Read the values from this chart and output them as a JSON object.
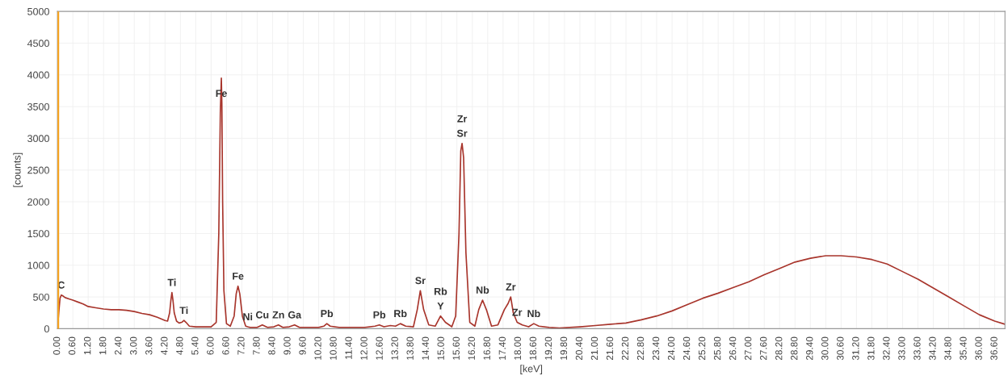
{
  "chart_data": {
    "type": "line",
    "xlabel": "[keV]",
    "ylabel": "[counts]",
    "x": [
      0.0,
      0.05,
      0.1,
      0.15,
      0.2,
      0.3,
      0.45,
      0.6,
      0.8,
      1.0,
      1.2,
      1.5,
      1.8,
      2.1,
      2.4,
      2.7,
      3.0,
      3.3,
      3.6,
      3.9,
      4.2,
      4.3,
      4.38,
      4.43,
      4.47,
      4.51,
      4.56,
      4.65,
      4.75,
      4.85,
      4.94,
      5.02,
      5.15,
      5.4,
      5.7,
      6.0,
      6.2,
      6.3,
      6.36,
      6.4,
      6.42,
      6.45,
      6.5,
      6.6,
      6.75,
      6.9,
      6.98,
      7.05,
      7.12,
      7.22,
      7.35,
      7.43,
      7.52,
      7.8,
      8.0,
      8.2,
      8.45,
      8.63,
      8.8,
      9.05,
      9.26,
      9.45,
      9.8,
      10.2,
      10.4,
      10.52,
      10.65,
      11.0,
      11.5,
      12.0,
      12.4,
      12.57,
      12.75,
      13.0,
      13.2,
      13.39,
      13.6,
      13.9,
      14.05,
      14.17,
      14.3,
      14.5,
      14.75,
      14.96,
      15.15,
      15.4,
      15.55,
      15.68,
      15.75,
      15.8,
      15.86,
      15.95,
      16.1,
      16.3,
      16.45,
      16.6,
      16.75,
      16.95,
      17.2,
      17.45,
      17.6,
      17.7,
      17.8,
      17.95,
      18.15,
      18.4,
      18.6,
      18.8,
      19.2,
      19.6,
      20.0,
      20.4,
      21.0,
      21.6,
      22.2,
      22.8,
      23.4,
      24.0,
      24.6,
      25.2,
      25.8,
      26.4,
      27.0,
      27.6,
      28.2,
      28.8,
      29.4,
      30.0,
      30.6,
      31.2,
      31.8,
      32.4,
      33.0,
      33.6,
      34.2,
      34.8,
      35.4,
      36.0,
      36.6,
      37.0
    ],
    "series": [
      {
        "color": "#a8352c",
        "values": [
          0,
          250,
          480,
          530,
          520,
          490,
          470,
          450,
          420,
          390,
          350,
          330,
          310,
          300,
          300,
          290,
          270,
          240,
          220,
          180,
          130,
          120,
          250,
          450,
          570,
          450,
          250,
          120,
          90,
          100,
          130,
          100,
          40,
          30,
          30,
          30,
          100,
          1500,
          3400,
          3950,
          3550,
          2000,
          600,
          80,
          40,
          200,
          550,
          670,
          550,
          200,
          40,
          30,
          20,
          20,
          60,
          20,
          30,
          60,
          20,
          30,
          60,
          20,
          20,
          20,
          40,
          80,
          40,
          20,
          20,
          20,
          40,
          60,
          30,
          50,
          40,
          80,
          40,
          30,
          300,
          600,
          300,
          60,
          40,
          200,
          100,
          30,
          200,
          1500,
          2800,
          2920,
          2700,
          1200,
          100,
          40,
          300,
          450,
          300,
          40,
          60,
          300,
          400,
          500,
          250,
          100,
          60,
          30,
          80,
          40,
          20,
          10,
          20,
          30,
          50,
          70,
          90,
          140,
          200,
          280,
          380,
          480,
          560,
          650,
          740,
          850,
          950,
          1050,
          1110,
          1150,
          1150,
          1130,
          1090,
          1020,
          900,
          780,
          640,
          500,
          360,
          220,
          120,
          70
        ]
      }
    ],
    "xlim": [
      0,
      37.0
    ],
    "ylim": [
      0,
      5000
    ],
    "xticks": [
      {
        "value": 0,
        "label": "0.00"
      },
      {
        "value": 0.6,
        "label": "0.60"
      },
      {
        "value": 1.2,
        "label": "1.20"
      },
      {
        "value": 1.8,
        "label": "1.80"
      },
      {
        "value": 2.4,
        "label": "2.40"
      },
      {
        "value": 3.0,
        "label": "3.00"
      },
      {
        "value": 3.6,
        "label": "3.60"
      },
      {
        "value": 4.2,
        "label": "4.20"
      },
      {
        "value": 4.8,
        "label": "4.80"
      },
      {
        "value": 5.4,
        "label": "5.40"
      },
      {
        "value": 6.0,
        "label": "6.00"
      },
      {
        "value": 6.6,
        "label": "6.60"
      },
      {
        "value": 7.2,
        "label": "7.20"
      },
      {
        "value": 7.8,
        "label": "7.80"
      },
      {
        "value": 8.4,
        "label": "8.40"
      },
      {
        "value": 9.0,
        "label": "9.00"
      },
      {
        "value": 9.6,
        "label": "9.60"
      },
      {
        "value": 10.2,
        "label": "10.20"
      },
      {
        "value": 10.8,
        "label": "10.80"
      },
      {
        "value": 11.4,
        "label": "11.40"
      },
      {
        "value": 12.0,
        "label": "12.00"
      },
      {
        "value": 12.6,
        "label": "12.60"
      },
      {
        "value": 13.2,
        "label": "13.20"
      },
      {
        "value": 13.8,
        "label": "13.80"
      },
      {
        "value": 14.4,
        "label": "14.40"
      },
      {
        "value": 15.0,
        "label": "15.00"
      },
      {
        "value": 15.6,
        "label": "15.60"
      },
      {
        "value": 16.2,
        "label": "16.20"
      },
      {
        "value": 16.8,
        "label": "16.80"
      },
      {
        "value": 17.4,
        "label": "17.40"
      },
      {
        "value": 18.0,
        "label": "18.00"
      },
      {
        "value": 18.6,
        "label": "18.60"
      },
      {
        "value": 19.2,
        "label": "19.20"
      },
      {
        "value": 19.8,
        "label": "19.80"
      },
      {
        "value": 20.4,
        "label": "20.40"
      },
      {
        "value": 21.0,
        "label": "21.00"
      },
      {
        "value": 21.6,
        "label": "21.60"
      },
      {
        "value": 22.2,
        "label": "22.20"
      },
      {
        "value": 22.8,
        "label": "22.80"
      },
      {
        "value": 23.4,
        "label": "23.40"
      },
      {
        "value": 24.0,
        "label": "24.00"
      },
      {
        "value": 24.6,
        "label": "24.60"
      },
      {
        "value": 25.2,
        "label": "25.20"
      },
      {
        "value": 25.8,
        "label": "25.80"
      },
      {
        "value": 26.4,
        "label": "26.40"
      },
      {
        "value": 27.0,
        "label": "27.00"
      },
      {
        "value": 27.6,
        "label": "27.60"
      },
      {
        "value": 28.2,
        "label": "28.20"
      },
      {
        "value": 28.8,
        "label": "28.80"
      },
      {
        "value": 29.4,
        "label": "29.40"
      },
      {
        "value": 30.0,
        "label": "30.00"
      },
      {
        "value": 30.6,
        "label": "30.60"
      },
      {
        "value": 31.2,
        "label": "31.20"
      },
      {
        "value": 31.8,
        "label": "31.80"
      },
      {
        "value": 32.4,
        "label": "32.40"
      },
      {
        "value": 33.0,
        "label": "33.00"
      },
      {
        "value": 33.6,
        "label": "33.60"
      },
      {
        "value": 34.2,
        "label": "34.20"
      },
      {
        "value": 34.8,
        "label": "34.80"
      },
      {
        "value": 35.4,
        "label": "35.40"
      },
      {
        "value": 36.0,
        "label": "36.00"
      },
      {
        "value": 36.6,
        "label": "36.60"
      }
    ],
    "yticks": [
      0,
      500,
      1000,
      1500,
      2000,
      2500,
      3000,
      3500,
      4000,
      4500,
      5000
    ],
    "grid": true,
    "marker": "none",
    "line_style": "solid",
    "ref_lines": [
      {
        "axis": "x",
        "value": 0,
        "color": "#f7a21b",
        "line_style": "solid"
      }
    ],
    "annotations": [
      {
        "text": "C",
        "x": 0.15,
        "y": 530
      },
      {
        "text": "Ti",
        "x": 4.47,
        "y": 570
      },
      {
        "text": "Ti",
        "x": 4.94,
        "y": 130
      },
      {
        "text": "Fe",
        "x": 6.4,
        "y": 3550
      },
      {
        "text": "Fe",
        "x": 7.05,
        "y": 670
      },
      {
        "text": "Ni",
        "x": 7.43,
        "y": 30
      },
      {
        "text": "Cu",
        "x": 8.0,
        "y": 60
      },
      {
        "text": "Zn",
        "x": 8.63,
        "y": 60
      },
      {
        "text": "Ga",
        "x": 9.26,
        "y": 60
      },
      {
        "text": "Pb",
        "x": 10.52,
        "y": 80
      },
      {
        "text": "Pb",
        "x": 12.57,
        "y": 60
      },
      {
        "text": "Rb",
        "x": 13.39,
        "y": 80
      },
      {
        "text": "Sr",
        "x": 14.17,
        "y": 600
      },
      {
        "text": "Y",
        "x": 14.96,
        "y": 200
      },
      {
        "text": "Rb",
        "x": 14.96,
        "y": 200
      },
      {
        "text": "Sr",
        "x": 15.8,
        "y": 2920
      },
      {
        "text": "Zr",
        "x": 15.8,
        "y": 2920
      },
      {
        "text": "Nb",
        "x": 16.6,
        "y": 450
      },
      {
        "text": "Zr",
        "x": 17.7,
        "y": 500
      },
      {
        "text": "Zr",
        "x": 17.95,
        "y": 100
      },
      {
        "text": "Nb",
        "x": 18.6,
        "y": 80
      }
    ]
  }
}
